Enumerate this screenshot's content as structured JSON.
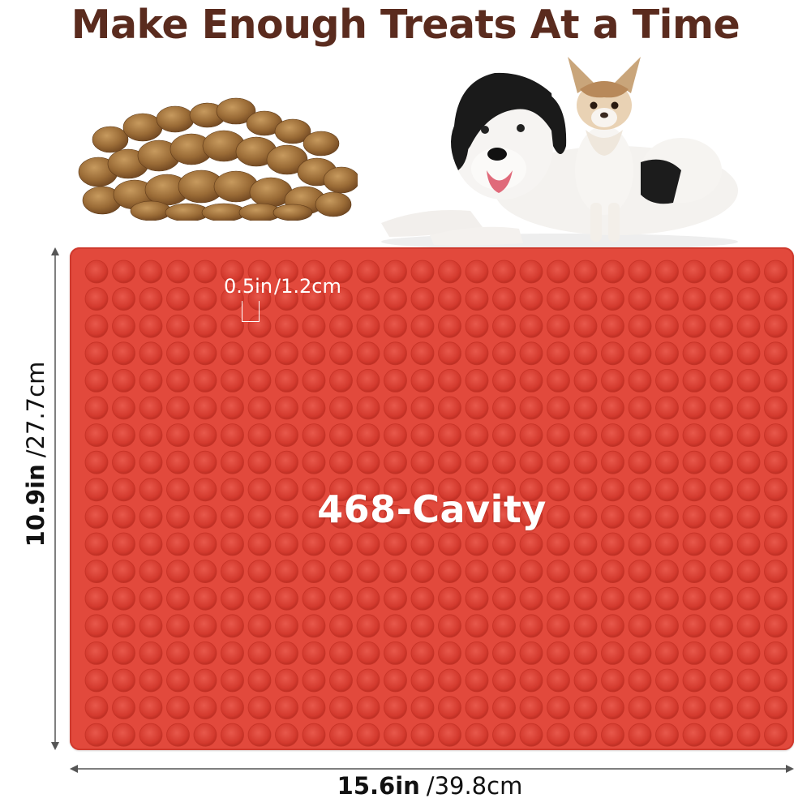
{
  "headline": "Make Enough Treats At a Time",
  "images": {
    "kibble": "dog-kibble-pile",
    "dogs": "two-dogs-photo"
  },
  "mat": {
    "color": "#e2493c",
    "cavity_count_label": "468-Cavity",
    "cavity_size": {
      "imperial": "0.5in",
      "metric": "/1.2cm"
    },
    "grid": {
      "columns": 26,
      "rows": 18
    }
  },
  "dimensions": {
    "width": {
      "imperial": "15.6in",
      "metric": "/39.8cm"
    },
    "height": {
      "imperial": "10.9in",
      "metric": "/27.7cm"
    }
  },
  "colors": {
    "headline": "#5a2b1e",
    "mat": "#e2493c",
    "cavity": "#d43a2e"
  }
}
